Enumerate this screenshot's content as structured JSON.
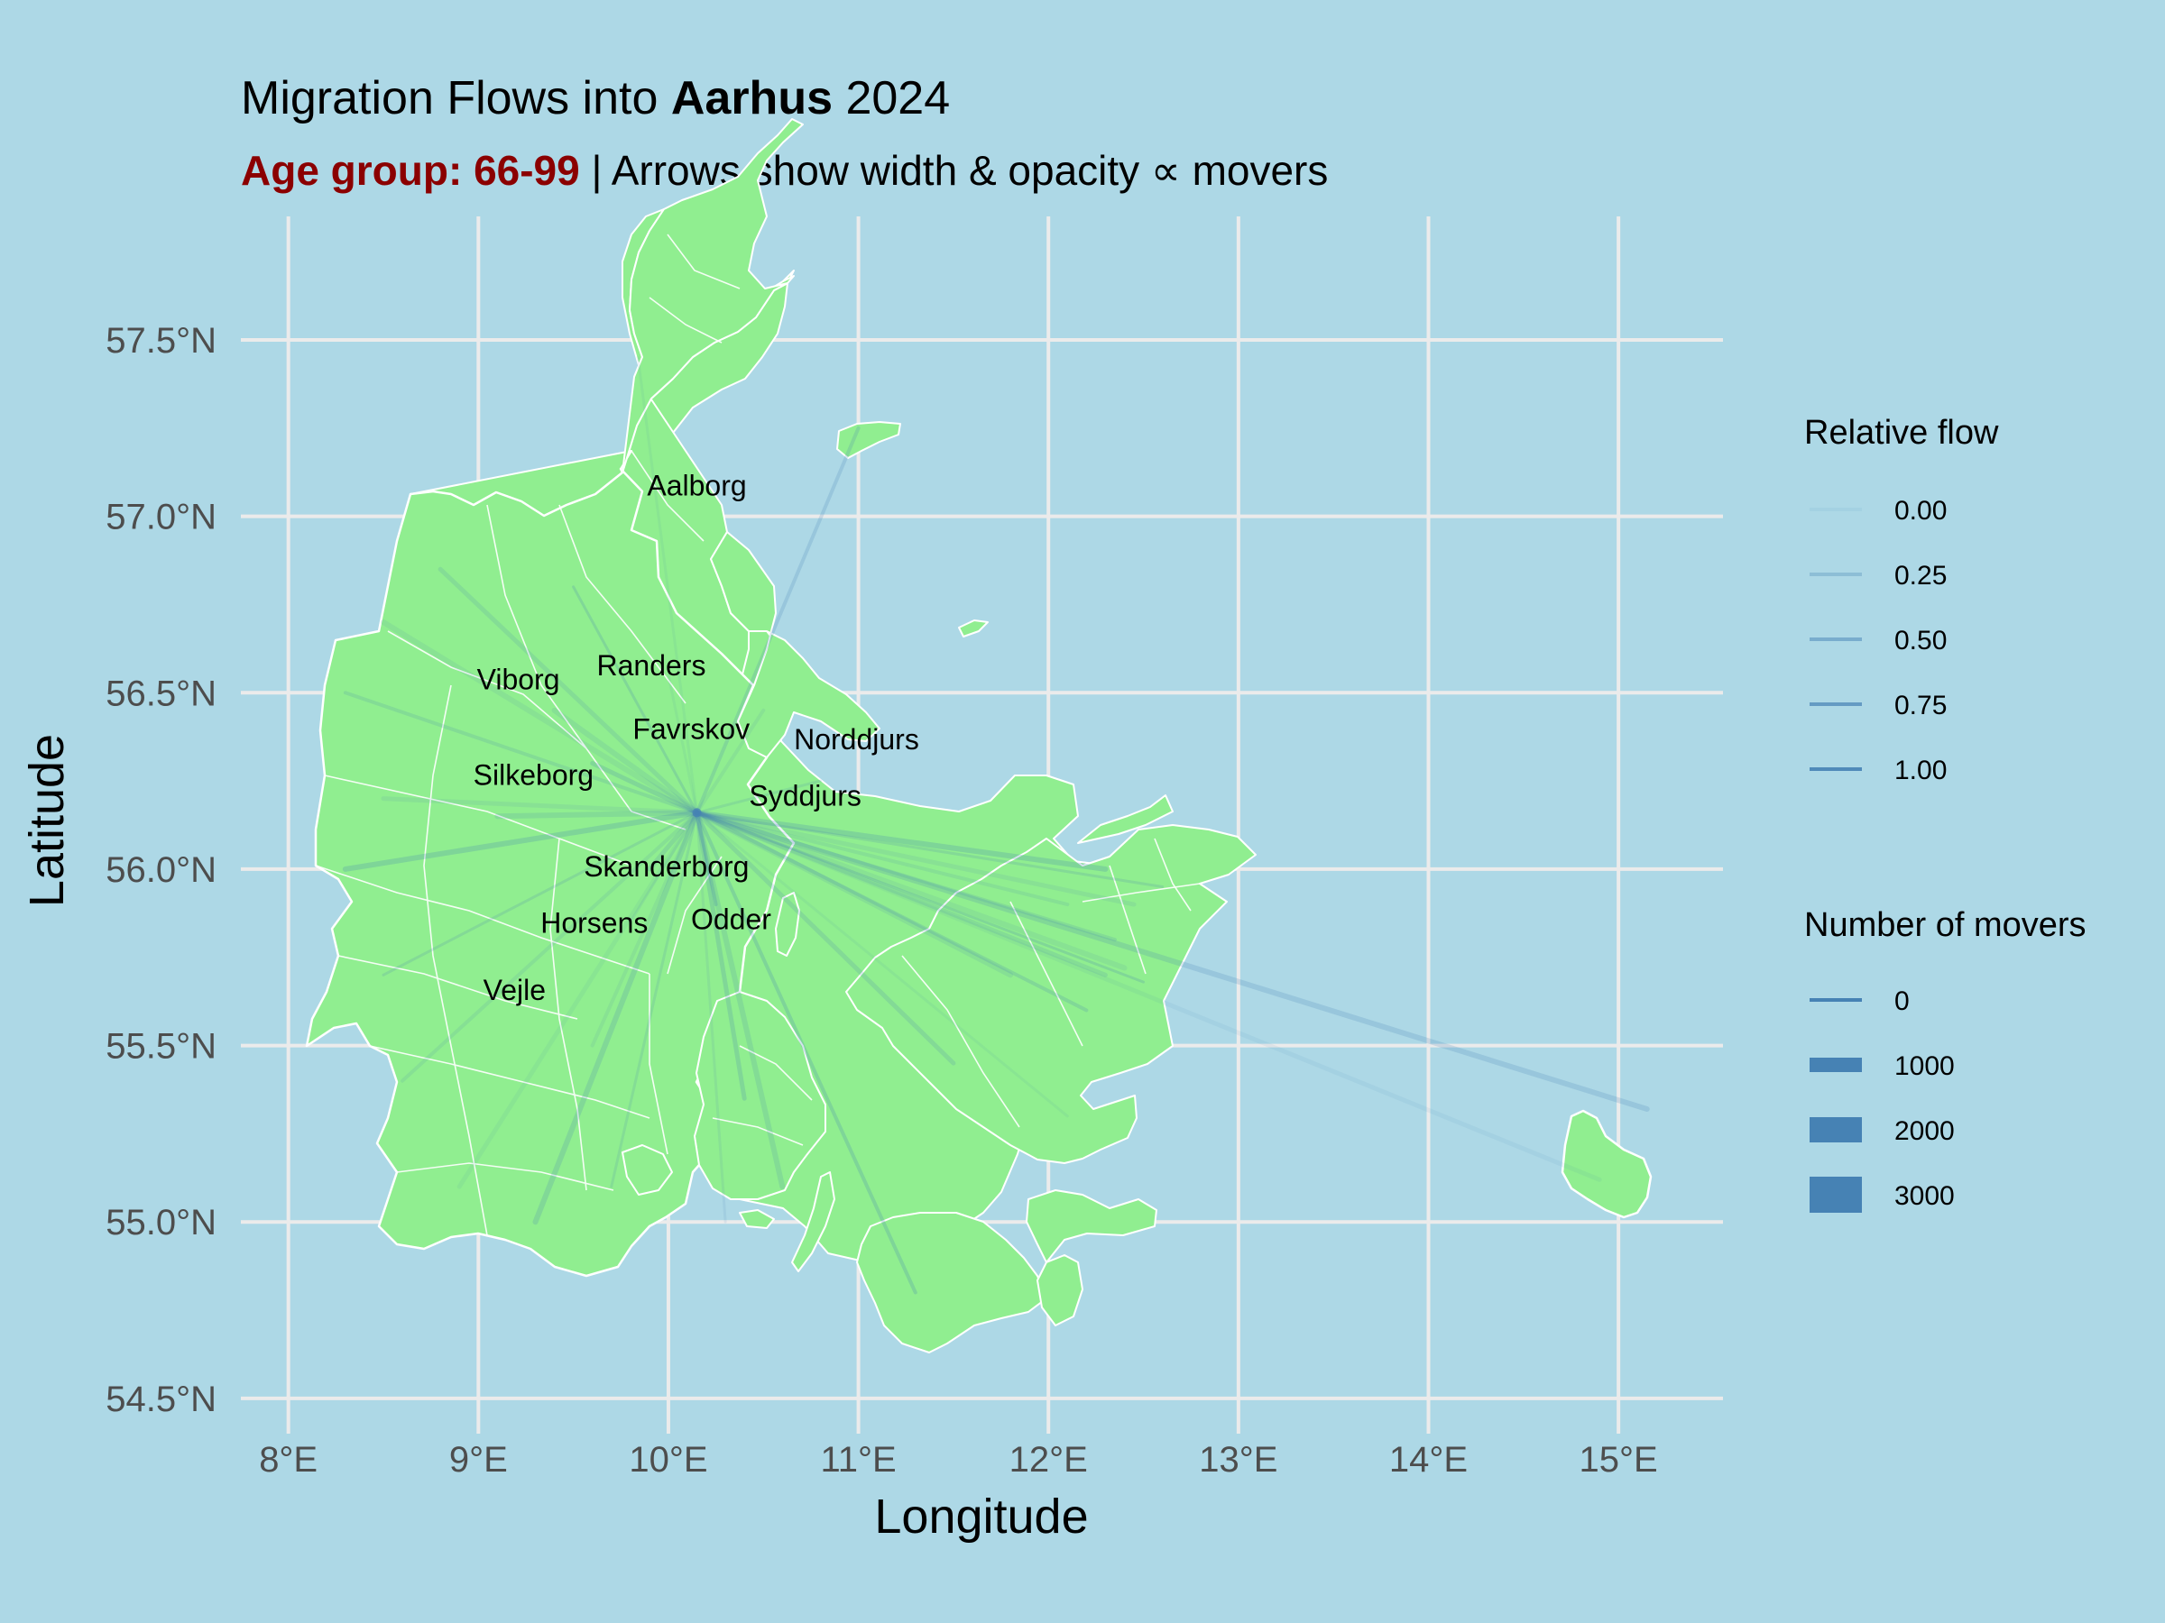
{
  "title": {
    "prefix": "Migration Flows into ",
    "bold": "Aarhus",
    "suffix": " 2024"
  },
  "subtitle": {
    "highlight": "Age group: 66-99",
    "rest": " | Arrows show width & opacity ∝ movers"
  },
  "colors": {
    "background": "#add8e6",
    "land": "#90ee90",
    "border": "#ffffff",
    "arrow": "#4682b4",
    "highlight": "#8b0000",
    "grid": "#ebebeb"
  },
  "chart_data": {
    "type": "map",
    "xlabel": "Longitude",
    "ylabel": "Latitude",
    "xlim": [
      7.75,
      15.55
    ],
    "ylim": [
      54.4,
      57.85
    ],
    "x_ticks": [
      {
        "value": 8,
        "label": "8°E"
      },
      {
        "value": 9,
        "label": "9°E"
      },
      {
        "value": 10,
        "label": "10°E"
      },
      {
        "value": 11,
        "label": "11°E"
      },
      {
        "value": 12,
        "label": "12°E"
      },
      {
        "value": 13,
        "label": "13°E"
      },
      {
        "value": 14,
        "label": "14°E"
      },
      {
        "value": 15,
        "label": "15°E"
      }
    ],
    "y_ticks": [
      {
        "value": 54.5,
        "label": "54.5°N"
      },
      {
        "value": 55.0,
        "label": "55.0°N"
      },
      {
        "value": 55.5,
        "label": "55.5°N"
      },
      {
        "value": 56.0,
        "label": "56.0°N"
      },
      {
        "value": 56.5,
        "label": "56.5°N"
      },
      {
        "value": 57.0,
        "label": "57.0°N"
      },
      {
        "value": 57.5,
        "label": "57.5°N"
      }
    ],
    "grid": true,
    "destination": {
      "name": "Aarhus",
      "lon": 10.15,
      "lat": 56.16
    },
    "city_labels": [
      {
        "name": "Aalborg",
        "lon": 10.15,
        "lat": 57.09
      },
      {
        "name": "Randers",
        "lon": 9.91,
        "lat": 56.58
      },
      {
        "name": "Viborg",
        "lon": 9.21,
        "lat": 56.54
      },
      {
        "name": "Favrskov",
        "lon": 10.12,
        "lat": 56.4
      },
      {
        "name": "Norddjurs",
        "lon": 10.99,
        "lat": 56.37
      },
      {
        "name": "Silkeborg",
        "lon": 9.29,
        "lat": 56.27
      },
      {
        "name": "Syddjurs",
        "lon": 10.72,
        "lat": 56.21
      },
      {
        "name": "Skanderborg",
        "lon": 9.99,
        "lat": 56.01
      },
      {
        "name": "Horsens",
        "lon": 9.61,
        "lat": 55.85
      },
      {
        "name": "Odder",
        "lon": 10.33,
        "lat": 55.86
      },
      {
        "name": "Vejle",
        "lon": 9.19,
        "lat": 55.66
      }
    ],
    "flows_from": [
      {
        "lon": 9.84,
        "lat": 57.45
      },
      {
        "lon": 11.0,
        "lat": 57.25
      },
      {
        "lon": 8.8,
        "lat": 56.85
      },
      {
        "lon": 8.5,
        "lat": 56.7
      },
      {
        "lon": 9.5,
        "lat": 56.8
      },
      {
        "lon": 8.3,
        "lat": 56.5
      },
      {
        "lon": 8.5,
        "lat": 56.2
      },
      {
        "lon": 8.3,
        "lat": 56.0
      },
      {
        "lon": 8.5,
        "lat": 55.7
      },
      {
        "lon": 8.6,
        "lat": 55.4
      },
      {
        "lon": 8.9,
        "lat": 55.1
      },
      {
        "lon": 9.3,
        "lat": 55.0
      },
      {
        "lon": 9.7,
        "lat": 55.1
      },
      {
        "lon": 9.6,
        "lat": 55.5
      },
      {
        "lon": 10.4,
        "lat": 55.35
      },
      {
        "lon": 10.6,
        "lat": 55.1
      },
      {
        "lon": 10.3,
        "lat": 55.0
      },
      {
        "lon": 11.3,
        "lat": 54.8
      },
      {
        "lon": 11.5,
        "lat": 55.45
      },
      {
        "lon": 11.8,
        "lat": 55.7
      },
      {
        "lon": 12.1,
        "lat": 55.3
      },
      {
        "lon": 12.2,
        "lat": 55.6
      },
      {
        "lon": 12.3,
        "lat": 55.7
      },
      {
        "lon": 12.4,
        "lat": 55.72
      },
      {
        "lon": 12.5,
        "lat": 55.68
      },
      {
        "lon": 12.35,
        "lat": 55.8
      },
      {
        "lon": 12.45,
        "lat": 55.9
      },
      {
        "lon": 12.3,
        "lat": 56.0
      },
      {
        "lon": 12.6,
        "lat": 55.95
      },
      {
        "lon": 12.1,
        "lat": 55.9
      },
      {
        "lon": 14.9,
        "lat": 55.12
      },
      {
        "lon": 15.15,
        "lat": 55.32
      },
      {
        "lon": 10.8,
        "lat": 56.25
      },
      {
        "lon": 10.5,
        "lat": 56.45
      },
      {
        "lon": 9.6,
        "lat": 56.3
      },
      {
        "lon": 9.1,
        "lat": 56.15
      },
      {
        "lon": 9.8,
        "lat": 55.85
      },
      {
        "lon": 10.25,
        "lat": 55.9
      },
      {
        "lon": 9.9,
        "lat": 56.0
      },
      {
        "lon": 9.4,
        "lat": 56.45
      },
      {
        "lon": 10.0,
        "lat": 56.55
      }
    ],
    "legend": {
      "position": "right",
      "relative_flow": {
        "title": "Relative flow",
        "labels": [
          "0.00",
          "0.25",
          "0.50",
          "0.75",
          "1.00"
        ],
        "alphas": [
          0.08,
          0.3,
          0.5,
          0.7,
          0.9
        ]
      },
      "movers": {
        "title": "Number of movers",
        "labels": [
          "0",
          "1000",
          "2000",
          "3000"
        ],
        "values": [
          0,
          1000,
          2000,
          3000
        ]
      }
    }
  }
}
